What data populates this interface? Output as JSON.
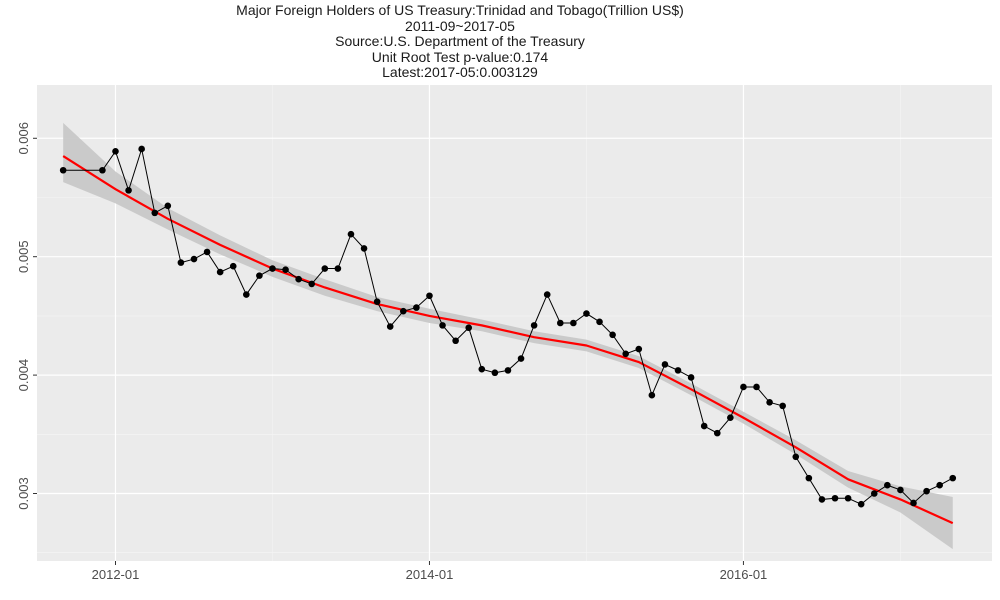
{
  "chart_data": {
    "type": "line",
    "title": "Major Foreign Holders of US Treasury:Trinidad and Tobago(Trillion US$)",
    "subtitle_lines": [
      "2011-09~2017-05",
      "Source:U.S. Department of the Treasury",
      "Unit Root Test p-value:0.174",
      "Latest:2017-05:0.003129"
    ],
    "xlabel": "",
    "ylabel": "",
    "x_ticks": [
      "2012-01",
      "2014-01",
      "2016-01"
    ],
    "y_ticks": [
      "0.003",
      "0.004",
      "0.005",
      "0.006"
    ],
    "xlim": [
      "2011-07",
      "2017-08"
    ],
    "ylim": [
      0.00243,
      0.00645
    ],
    "grid": true,
    "series": [
      {
        "color": "#000000",
        "x": [
          "2011-09",
          "2011-12",
          "2012-01",
          "2012-02",
          "2012-03",
          "2012-04",
          "2012-05",
          "2012-06",
          "2012-07",
          "2012-08",
          "2012-09",
          "2012-10",
          "2012-11",
          "2012-12",
          "2013-01",
          "2013-02",
          "2013-03",
          "2013-04",
          "2013-05",
          "2013-06",
          "2013-07",
          "2013-08",
          "2013-09",
          "2013-10",
          "2013-11",
          "2013-12",
          "2014-01",
          "2014-02",
          "2014-03",
          "2014-04",
          "2014-05",
          "2014-06",
          "2014-07",
          "2014-08",
          "2014-09",
          "2014-10",
          "2014-11",
          "2014-12",
          "2015-01",
          "2015-02",
          "2015-03",
          "2015-04",
          "2015-05",
          "2015-06",
          "2015-07",
          "2015-08",
          "2015-09",
          "2015-10",
          "2015-11",
          "2015-12",
          "2016-01",
          "2016-02",
          "2016-03",
          "2016-04",
          "2016-05",
          "2016-06",
          "2016-07",
          "2016-08",
          "2016-09",
          "2016-10",
          "2016-11",
          "2016-12",
          "2017-01",
          "2017-02",
          "2017-03",
          "2017-04",
          "2017-05"
        ],
        "values": [
          0.00573,
          0.00573,
          0.00589,
          0.00556,
          0.00591,
          0.00537,
          0.00543,
          0.00495,
          0.00498,
          0.00504,
          0.00487,
          0.00492,
          0.00468,
          0.00484,
          0.0049,
          0.00489,
          0.00481,
          0.00477,
          0.0049,
          0.0049,
          0.00519,
          0.00507,
          0.00462,
          0.00441,
          0.00454,
          0.00457,
          0.00467,
          0.00442,
          0.00429,
          0.0044,
          0.00405,
          0.00402,
          0.00404,
          0.00414,
          0.00442,
          0.00468,
          0.00444,
          0.00444,
          0.00452,
          0.00445,
          0.00434,
          0.00418,
          0.00422,
          0.00383,
          0.00409,
          0.00404,
          0.00398,
          0.00357,
          0.00351,
          0.00364,
          0.0039,
          0.0039,
          0.00377,
          0.00374,
          0.00331,
          0.00313,
          0.00295,
          0.00296,
          0.00296,
          0.00291,
          0.003,
          0.00307,
          0.00303,
          0.00292,
          0.00302,
          0.00307,
          0.00313
        ]
      },
      {
        "type": "smooth",
        "color": "#ff0000",
        "band_color": "#c8c8c8",
        "x": [
          "2011-09",
          "2012-01",
          "2012-05",
          "2012-09",
          "2013-01",
          "2013-05",
          "2013-09",
          "2014-01",
          "2014-05",
          "2014-09",
          "2015-01",
          "2015-05",
          "2015-09",
          "2016-01",
          "2016-05",
          "2016-09",
          "2017-01",
          "2017-05"
        ],
        "values": [
          0.00585,
          0.00557,
          0.00532,
          0.0051,
          0.0049,
          0.00474,
          0.0046,
          0.0045,
          0.00442,
          0.00432,
          0.00425,
          0.00411,
          0.00388,
          0.00364,
          0.00339,
          0.00312,
          0.00295,
          0.00275
        ],
        "band_low": [
          0.00563,
          0.00545,
          0.00523,
          0.00502,
          0.00483,
          0.00467,
          0.00454,
          0.00444,
          0.00437,
          0.00427,
          0.0042,
          0.00406,
          0.00383,
          0.00359,
          0.00333,
          0.00305,
          0.00284,
          0.00253
        ],
        "band_high": [
          0.00613,
          0.00572,
          0.00541,
          0.00518,
          0.00497,
          0.00481,
          0.00466,
          0.00456,
          0.00447,
          0.00437,
          0.0043,
          0.00416,
          0.00393,
          0.00369,
          0.00345,
          0.00319,
          0.00306,
          0.00297
        ]
      }
    ]
  }
}
